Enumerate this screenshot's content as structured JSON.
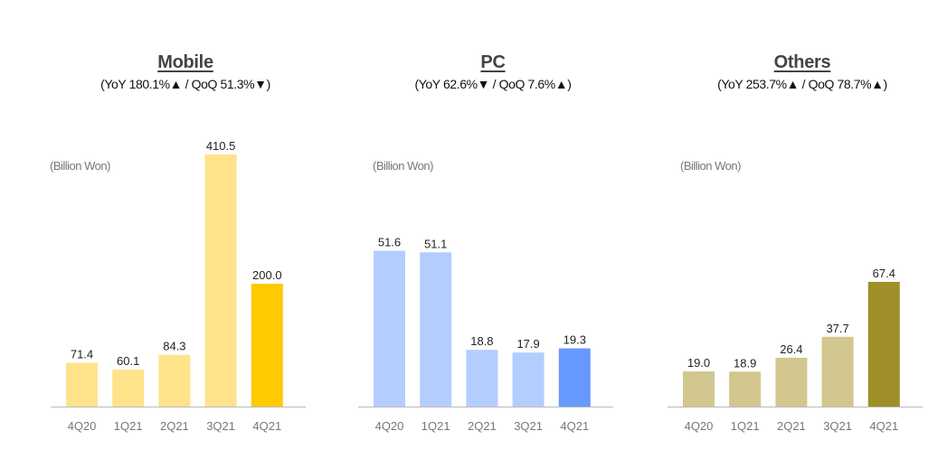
{
  "chart_data": [
    {
      "type": "bar",
      "title": "Mobile",
      "subtitle": "(YoY 180.1%▲ / QoQ 51.3%▼)",
      "unit": "(Billion Won)",
      "categories": [
        "4Q20",
        "1Q21",
        "2Q21",
        "3Q21",
        "4Q21"
      ],
      "values": [
        71.4,
        60.1,
        84.3,
        410.5,
        200.0
      ],
      "value_labels": [
        "71.4",
        "60.1",
        "84.3",
        "410.5",
        "200.0"
      ],
      "colors": [
        "#FFE38A",
        "#FFE38A",
        "#FFE38A",
        "#FFE38A",
        "#FFCA00"
      ],
      "ylim": [
        0,
        410.5
      ]
    },
    {
      "type": "bar",
      "title": "PC",
      "subtitle": "(YoY 62.6%▼ / QoQ 7.6%▲)",
      "unit": "(Billion Won)",
      "categories": [
        "4Q20",
        "1Q21",
        "2Q21",
        "3Q21",
        "4Q21"
      ],
      "values": [
        51.6,
        51.1,
        18.8,
        17.9,
        19.3
      ],
      "value_labels": [
        "51.6",
        "51.1",
        "18.8",
        "17.9",
        "19.3"
      ],
      "colors": [
        "#B3CDFF",
        "#B3CDFF",
        "#B3CDFF",
        "#B3CDFF",
        "#6699FF"
      ],
      "ylim": [
        0,
        83.5
      ]
    },
    {
      "type": "bar",
      "title": "Others",
      "subtitle": "(YoY 253.7%▲ / QoQ 78.7%▲)",
      "unit": "(Billion Won)",
      "categories": [
        "4Q20",
        "1Q21",
        "2Q21",
        "3Q21",
        "4Q21"
      ],
      "values": [
        19.0,
        18.9,
        26.4,
        37.7,
        67.4
      ],
      "value_labels": [
        "19.0",
        "18.9",
        "26.4",
        "37.7",
        "67.4"
      ],
      "colors": [
        "#D1C78F",
        "#D1C78F",
        "#D1C78F",
        "#D1C78F",
        "#9E8F28"
      ],
      "ylim": [
        0,
        136.2
      ]
    }
  ],
  "colors": {
    "axis": "#BBBBBB",
    "tick_label": "#777777",
    "value_label": "#222222"
  }
}
